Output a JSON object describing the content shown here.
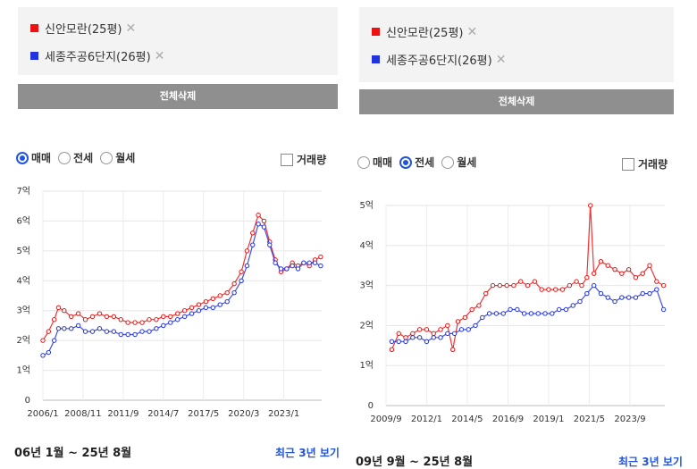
{
  "panels": [
    {
      "legend": [
        {
          "label": "신안모란(25평)",
          "remove_icon": "close-icon",
          "color": "#ee1111"
        },
        {
          "label": "세종주공6단지(26평)",
          "remove_icon": "close-icon",
          "color": "#2233dd"
        }
      ],
      "clear_label": "전체삭제",
      "trade_types": [
        {
          "label": "매매",
          "selected": true
        },
        {
          "label": "전세",
          "selected": false
        },
        {
          "label": "월세",
          "selected": false
        }
      ],
      "volume_label": "거래량",
      "period_label": "06년 1월 ~ 25년 8월",
      "recent_label": "최근 3년 보기"
    },
    {
      "legend": [
        {
          "label": "신안모란(25평)",
          "remove_icon": "close-icon",
          "color": "#ee1111"
        },
        {
          "label": "세종주공6단지(26평)",
          "remove_icon": "close-icon",
          "color": "#2233dd"
        }
      ],
      "clear_label": "전체삭제",
      "trade_types": [
        {
          "label": "매매",
          "selected": false
        },
        {
          "label": "전세",
          "selected": true
        },
        {
          "label": "월세",
          "selected": false
        }
      ],
      "volume_label": "거래량",
      "period_label": "09년 9월 ~ 25년 8월",
      "recent_label": "최근 3년 보기"
    }
  ],
  "chart_data": [
    {
      "type": "line",
      "y_ticks": [
        "0",
        "1억",
        "2억",
        "3억",
        "4억",
        "5억",
        "6억",
        "7억"
      ],
      "x_ticks": [
        "2006/1",
        "2008/11",
        "2011/9",
        "2014/7",
        "2017/5",
        "2020/3",
        "2023/1"
      ],
      "x_tick_years": [
        2006.0,
        2008.83,
        2011.67,
        2014.5,
        2017.33,
        2020.17,
        2023.0
      ],
      "xlim": [
        2006.0,
        2025.67
      ],
      "ylim": [
        0,
        7
      ],
      "grid": true,
      "series": [
        {
          "color": "#ee1111",
          "points": [
            [
              2006.0,
              2.0
            ],
            [
              2006.4,
              2.3
            ],
            [
              2006.8,
              2.7
            ],
            [
              2007.1,
              3.1
            ],
            [
              2007.5,
              3.0
            ],
            [
              2008.0,
              2.8
            ],
            [
              2008.5,
              2.9
            ],
            [
              2009.0,
              2.7
            ],
            [
              2009.5,
              2.8
            ],
            [
              2010.0,
              2.9
            ],
            [
              2010.5,
              2.8
            ],
            [
              2011.0,
              2.8
            ],
            [
              2011.5,
              2.7
            ],
            [
              2012.0,
              2.6
            ],
            [
              2012.5,
              2.6
            ],
            [
              2013.0,
              2.6
            ],
            [
              2013.5,
              2.7
            ],
            [
              2014.0,
              2.7
            ],
            [
              2014.5,
              2.8
            ],
            [
              2015.0,
              2.8
            ],
            [
              2015.5,
              2.9
            ],
            [
              2016.0,
              3.0
            ],
            [
              2016.5,
              3.1
            ],
            [
              2017.0,
              3.2
            ],
            [
              2017.5,
              3.3
            ],
            [
              2018.0,
              3.4
            ],
            [
              2018.5,
              3.5
            ],
            [
              2019.0,
              3.6
            ],
            [
              2019.5,
              3.9
            ],
            [
              2020.0,
              4.3
            ],
            [
              2020.4,
              5.0
            ],
            [
              2020.8,
              5.6
            ],
            [
              2021.2,
              6.2
            ],
            [
              2021.6,
              6.0
            ],
            [
              2022.0,
              5.3
            ],
            [
              2022.4,
              4.7
            ],
            [
              2022.8,
              4.3
            ],
            [
              2023.2,
              4.4
            ],
            [
              2023.6,
              4.6
            ],
            [
              2024.0,
              4.5
            ],
            [
              2024.4,
              4.6
            ],
            [
              2024.8,
              4.5
            ],
            [
              2025.2,
              4.7
            ],
            [
              2025.6,
              4.8
            ]
          ]
        },
        {
          "color": "#2233dd",
          "points": [
            [
              2006.0,
              1.5
            ],
            [
              2006.4,
              1.6
            ],
            [
              2006.8,
              2.0
            ],
            [
              2007.1,
              2.4
            ],
            [
              2007.5,
              2.4
            ],
            [
              2008.0,
              2.4
            ],
            [
              2008.5,
              2.5
            ],
            [
              2009.0,
              2.3
            ],
            [
              2009.5,
              2.3
            ],
            [
              2010.0,
              2.4
            ],
            [
              2010.5,
              2.3
            ],
            [
              2011.0,
              2.3
            ],
            [
              2011.5,
              2.2
            ],
            [
              2012.0,
              2.2
            ],
            [
              2012.5,
              2.2
            ],
            [
              2013.0,
              2.3
            ],
            [
              2013.5,
              2.3
            ],
            [
              2014.0,
              2.4
            ],
            [
              2014.5,
              2.5
            ],
            [
              2015.0,
              2.6
            ],
            [
              2015.5,
              2.7
            ],
            [
              2016.0,
              2.8
            ],
            [
              2016.5,
              2.9
            ],
            [
              2017.0,
              3.0
            ],
            [
              2017.5,
              3.1
            ],
            [
              2018.0,
              3.1
            ],
            [
              2018.5,
              3.2
            ],
            [
              2019.0,
              3.3
            ],
            [
              2019.5,
              3.6
            ],
            [
              2020.0,
              4.0
            ],
            [
              2020.4,
              4.5
            ],
            [
              2020.8,
              5.2
            ],
            [
              2021.2,
              5.9
            ],
            [
              2021.6,
              5.8
            ],
            [
              2022.0,
              5.2
            ],
            [
              2022.4,
              4.6
            ],
            [
              2022.8,
              4.4
            ],
            [
              2023.2,
              4.4
            ],
            [
              2023.6,
              4.5
            ],
            [
              2024.0,
              4.4
            ],
            [
              2024.4,
              4.6
            ],
            [
              2024.8,
              4.6
            ],
            [
              2025.2,
              4.6
            ],
            [
              2025.6,
              4.5
            ]
          ]
        }
      ]
    },
    {
      "type": "line",
      "y_ticks": [
        "0",
        "1억",
        "2억",
        "3억",
        "4억",
        "5억"
      ],
      "x_ticks": [
        "2009/9",
        "2012/1",
        "2014/5",
        "2016/9",
        "2019/1",
        "2021/5",
        "2023/9"
      ],
      "x_tick_years": [
        2009.67,
        2012.0,
        2014.33,
        2016.67,
        2019.0,
        2021.33,
        2023.67
      ],
      "xlim": [
        2009.67,
        2025.67
      ],
      "ylim": [
        0,
        5
      ],
      "grid": true,
      "series": [
        {
          "color": "#ee1111",
          "points": [
            [
              2010.0,
              1.4
            ],
            [
              2010.4,
              1.8
            ],
            [
              2010.8,
              1.7
            ],
            [
              2011.2,
              1.8
            ],
            [
              2011.6,
              1.9
            ],
            [
              2012.0,
              1.9
            ],
            [
              2012.4,
              1.8
            ],
            [
              2012.8,
              1.9
            ],
            [
              2013.2,
              2.0
            ],
            [
              2013.5,
              1.4
            ],
            [
              2013.8,
              2.1
            ],
            [
              2014.2,
              2.2
            ],
            [
              2014.6,
              2.4
            ],
            [
              2015.0,
              2.5
            ],
            [
              2015.4,
              2.8
            ],
            [
              2015.8,
              3.0
            ],
            [
              2016.2,
              3.0
            ],
            [
              2016.6,
              3.0
            ],
            [
              2017.0,
              3.0
            ],
            [
              2017.4,
              3.1
            ],
            [
              2017.8,
              3.0
            ],
            [
              2018.2,
              3.1
            ],
            [
              2018.6,
              2.9
            ],
            [
              2019.0,
              2.9
            ],
            [
              2019.4,
              2.9
            ],
            [
              2019.8,
              2.9
            ],
            [
              2020.2,
              3.0
            ],
            [
              2020.6,
              3.1
            ],
            [
              2020.9,
              3.0
            ],
            [
              2021.2,
              3.2
            ],
            [
              2021.4,
              5.0
            ],
            [
              2021.6,
              3.3
            ],
            [
              2022.0,
              3.6
            ],
            [
              2022.4,
              3.5
            ],
            [
              2022.8,
              3.4
            ],
            [
              2023.2,
              3.3
            ],
            [
              2023.6,
              3.4
            ],
            [
              2024.0,
              3.2
            ],
            [
              2024.4,
              3.3
            ],
            [
              2024.8,
              3.5
            ],
            [
              2025.2,
              3.1
            ],
            [
              2025.6,
              3.0
            ]
          ]
        },
        {
          "color": "#2233dd",
          "points": [
            [
              2010.0,
              1.6
            ],
            [
              2010.4,
              1.6
            ],
            [
              2010.8,
              1.6
            ],
            [
              2011.2,
              1.7
            ],
            [
              2011.6,
              1.7
            ],
            [
              2012.0,
              1.6
            ],
            [
              2012.4,
              1.7
            ],
            [
              2012.8,
              1.7
            ],
            [
              2013.2,
              1.8
            ],
            [
              2013.6,
              1.8
            ],
            [
              2014.0,
              1.9
            ],
            [
              2014.4,
              1.9
            ],
            [
              2014.8,
              2.0
            ],
            [
              2015.2,
              2.2
            ],
            [
              2015.6,
              2.3
            ],
            [
              2016.0,
              2.3
            ],
            [
              2016.4,
              2.3
            ],
            [
              2016.8,
              2.4
            ],
            [
              2017.2,
              2.4
            ],
            [
              2017.6,
              2.3
            ],
            [
              2018.0,
              2.3
            ],
            [
              2018.4,
              2.3
            ],
            [
              2018.8,
              2.3
            ],
            [
              2019.2,
              2.3
            ],
            [
              2019.6,
              2.4
            ],
            [
              2020.0,
              2.4
            ],
            [
              2020.4,
              2.5
            ],
            [
              2020.8,
              2.6
            ],
            [
              2021.2,
              2.8
            ],
            [
              2021.6,
              3.0
            ],
            [
              2022.0,
              2.8
            ],
            [
              2022.4,
              2.7
            ],
            [
              2022.8,
              2.6
            ],
            [
              2023.2,
              2.7
            ],
            [
              2023.6,
              2.7
            ],
            [
              2024.0,
              2.7
            ],
            [
              2024.4,
              2.8
            ],
            [
              2024.8,
              2.8
            ],
            [
              2025.2,
              2.9
            ],
            [
              2025.6,
              2.4
            ]
          ]
        }
      ]
    }
  ]
}
